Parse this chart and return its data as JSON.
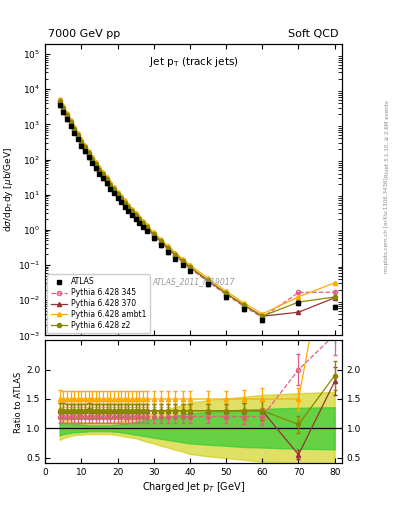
{
  "title_left": "7000 GeV pp",
  "title_right": "Soft QCD",
  "plot_title": "Jet p$_{T}$ (track jets)",
  "ylabel_main": "dσ/dp$_{T}$dy [μb/GeV]",
  "ylabel_ratio": "Ratio to ATLAS",
  "xlabel": "Charged Jet p$_{T}$ [GeV]",
  "watermark": "ATLAS_2011_I919017",
  "right_label1": "Rivet 3.1.10, ≥ 2.6M events",
  "right_label2": "mcplots.cern.ch [arXiv:1306.3436]",
  "atlas_pt": [
    4,
    5,
    6,
    7,
    8,
    9,
    10,
    11,
    12,
    13,
    14,
    15,
    16,
    17,
    18,
    19,
    20,
    21,
    22,
    23,
    24,
    25,
    26,
    27,
    28,
    30,
    32,
    34,
    36,
    38,
    40,
    45,
    50,
    55,
    60,
    70,
    80
  ],
  "atlas_val": [
    3500,
    2200,
    1400,
    900,
    580,
    380,
    250,
    170,
    115,
    80,
    56,
    40,
    29,
    21,
    15,
    11,
    8.2,
    6.1,
    4.6,
    3.5,
    2.65,
    2.0,
    1.55,
    1.2,
    0.93,
    0.57,
    0.36,
    0.23,
    0.15,
    0.1,
    0.067,
    0.028,
    0.012,
    0.0055,
    0.0027,
    0.0083,
    0.0065
  ],
  "atlas_err": [
    300,
    180,
    110,
    70,
    45,
    30,
    20,
    13,
    9,
    6,
    4.5,
    3,
    2.2,
    1.6,
    1.1,
    0.8,
    0.6,
    0.45,
    0.34,
    0.26,
    0.19,
    0.15,
    0.11,
    0.09,
    0.07,
    0.042,
    0.026,
    0.017,
    0.011,
    0.007,
    0.005,
    0.002,
    0.0009,
    0.0005,
    0.0003,
    0.001,
    0.0008
  ],
  "py345_pt": [
    4,
    5,
    6,
    7,
    8,
    9,
    10,
    11,
    12,
    13,
    14,
    15,
    16,
    17,
    18,
    19,
    20,
    21,
    22,
    23,
    24,
    25,
    26,
    27,
    28,
    30,
    32,
    34,
    36,
    38,
    40,
    45,
    50,
    55,
    60,
    70,
    80
  ],
  "py345_val": [
    4200,
    2640,
    1680,
    1080,
    696,
    456,
    300,
    204,
    138,
    96,
    67.2,
    48,
    34.8,
    25.2,
    18,
    13.2,
    9.84,
    7.32,
    5.52,
    4.2,
    3.18,
    2.4,
    1.86,
    1.44,
    1.116,
    0.684,
    0.432,
    0.276,
    0.18,
    0.12,
    0.0804,
    0.0336,
    0.0144,
    0.0066,
    0.00324,
    0.0166,
    0.0169
  ],
  "py345_err": [
    200,
    130,
    80,
    50,
    35,
    22,
    15,
    10,
    7,
    5,
    3.4,
    2.4,
    1.7,
    1.3,
    0.9,
    0.66,
    0.49,
    0.37,
    0.28,
    0.21,
    0.16,
    0.12,
    0.09,
    0.07,
    0.056,
    0.034,
    0.022,
    0.014,
    0.009,
    0.006,
    0.004,
    0.0017,
    0.0007,
    0.00033,
    0.00016,
    0.00083,
    0.00085
  ],
  "py370_pt": [
    4,
    5,
    6,
    7,
    8,
    9,
    10,
    11,
    12,
    13,
    14,
    15,
    16,
    17,
    18,
    19,
    20,
    21,
    22,
    23,
    24,
    25,
    26,
    27,
    28,
    30,
    32,
    34,
    36,
    38,
    40,
    45,
    50,
    55,
    60,
    70,
    80
  ],
  "py370_val": [
    4550,
    2860,
    1820,
    1170,
    754,
    494,
    325,
    221,
    150,
    104,
    72.8,
    52,
    37.7,
    27.3,
    19.5,
    14.3,
    10.66,
    7.93,
    5.98,
    4.55,
    3.445,
    2.6,
    2.015,
    1.56,
    1.209,
    0.741,
    0.468,
    0.299,
    0.195,
    0.13,
    0.0871,
    0.0364,
    0.0156,
    0.00715,
    0.00351,
    0.00455,
    0.0117
  ],
  "py370_err": [
    220,
    140,
    90,
    57,
    37,
    24,
    16,
    11,
    7.5,
    5.2,
    3.6,
    2.6,
    1.9,
    1.4,
    1.0,
    0.72,
    0.53,
    0.4,
    0.3,
    0.23,
    0.17,
    0.13,
    0.1,
    0.078,
    0.06,
    0.037,
    0.023,
    0.015,
    0.01,
    0.0065,
    0.0044,
    0.0018,
    0.00078,
    0.00036,
    0.00018,
    0.00023,
    0.00059
  ],
  "pyambt1_pt": [
    4,
    5,
    6,
    7,
    8,
    9,
    10,
    11,
    12,
    13,
    14,
    15,
    16,
    17,
    18,
    19,
    20,
    21,
    22,
    23,
    24,
    25,
    26,
    27,
    28,
    30,
    32,
    34,
    36,
    38,
    40,
    45,
    50,
    55,
    60,
    70,
    80
  ],
  "pyambt1_val": [
    5250,
    3300,
    2100,
    1350,
    870,
    570,
    375,
    255,
    173,
    120,
    84,
    60,
    43.5,
    31.5,
    22.5,
    16.5,
    12.3,
    9.15,
    6.9,
    5.25,
    3.975,
    3.0,
    2.325,
    1.8,
    1.395,
    0.855,
    0.54,
    0.345,
    0.225,
    0.15,
    0.1005,
    0.042,
    0.018,
    0.00825,
    0.00405,
    0.01245,
    0.0312
  ],
  "pyambt1_err": [
    250,
    160,
    100,
    65,
    43,
    27,
    18,
    13,
    8.7,
    6.0,
    4.2,
    3.0,
    2.2,
    1.6,
    1.1,
    0.83,
    0.62,
    0.46,
    0.35,
    0.26,
    0.2,
    0.15,
    0.12,
    0.09,
    0.07,
    0.043,
    0.027,
    0.017,
    0.011,
    0.0075,
    0.005,
    0.0021,
    0.0009,
    0.00041,
    0.0002,
    0.00062,
    0.0016
  ],
  "pyz2_pt": [
    4,
    5,
    6,
    7,
    8,
    9,
    10,
    11,
    12,
    13,
    14,
    15,
    16,
    17,
    18,
    19,
    20,
    21,
    22,
    23,
    24,
    25,
    26,
    27,
    28,
    30,
    32,
    34,
    36,
    38,
    40,
    45,
    50,
    55,
    60,
    70,
    80
  ],
  "pyz2_val": [
    4550,
    2860,
    1820,
    1170,
    754,
    494,
    325,
    221,
    150,
    104,
    72.8,
    52,
    37.7,
    27.3,
    19.5,
    14.3,
    10.66,
    7.93,
    5.98,
    4.55,
    3.445,
    2.6,
    2.015,
    1.56,
    1.209,
    0.741,
    0.468,
    0.299,
    0.195,
    0.13,
    0.0871,
    0.0364,
    0.0156,
    0.00715,
    0.00351,
    0.00884,
    0.01235
  ],
  "pyz2_err": [
    220,
    140,
    90,
    57,
    37,
    24,
    16,
    11,
    7.5,
    5.2,
    3.6,
    2.6,
    1.9,
    1.4,
    1.0,
    0.72,
    0.53,
    0.4,
    0.3,
    0.23,
    0.17,
    0.13,
    0.1,
    0.078,
    0.06,
    0.037,
    0.023,
    0.015,
    0.01,
    0.0065,
    0.0044,
    0.0018,
    0.00078,
    0.00036,
    0.00018,
    0.00044,
    0.00062
  ],
  "atlas_color": "#000000",
  "py345_color": "#e06080",
  "py370_color": "#993333",
  "pyambt1_color": "#ffaa00",
  "pyz2_color": "#888800",
  "band_inner_color": "#33cc33",
  "band_outer_color": "#cccc00",
  "xlim": [
    0,
    82
  ],
  "ylim_main": [
    0.001,
    200000.0
  ],
  "ylim_ratio": [
    0.4,
    2.5
  ],
  "ratio_yticks": [
    0.5,
    1.0,
    1.5,
    2.0
  ],
  "xmin_band": 4,
  "xmax_band": 82,
  "band_outer_lo": [
    0.8,
    0.83,
    0.85,
    0.87,
    0.88,
    0.89,
    0.89,
    0.9,
    0.9,
    0.9,
    0.9,
    0.9,
    0.9,
    0.9,
    0.9,
    0.89,
    0.88,
    0.87,
    0.86,
    0.85,
    0.84,
    0.83,
    0.81,
    0.79,
    0.77,
    0.74,
    0.7,
    0.67,
    0.63,
    0.6,
    0.56,
    0.52,
    0.49,
    0.46,
    0.43,
    0.4,
    0.38
  ],
  "band_outer_hi": [
    1.2,
    1.17,
    1.15,
    1.13,
    1.12,
    1.11,
    1.11,
    1.1,
    1.1,
    1.1,
    1.1,
    1.1,
    1.1,
    1.1,
    1.1,
    1.11,
    1.12,
    1.13,
    1.14,
    1.15,
    1.16,
    1.17,
    1.19,
    1.21,
    1.23,
    1.26,
    1.3,
    1.33,
    1.37,
    1.4,
    1.44,
    1.48,
    1.51,
    1.54,
    1.57,
    1.6,
    1.62
  ],
  "band_inner_lo": [
    0.88,
    0.9,
    0.91,
    0.92,
    0.93,
    0.93,
    0.94,
    0.94,
    0.95,
    0.95,
    0.95,
    0.95,
    0.95,
    0.95,
    0.95,
    0.94,
    0.94,
    0.93,
    0.92,
    0.91,
    0.9,
    0.89,
    0.88,
    0.87,
    0.86,
    0.84,
    0.82,
    0.8,
    0.78,
    0.76,
    0.74,
    0.72,
    0.7,
    0.68,
    0.67,
    0.65,
    0.64
  ],
  "band_inner_hi": [
    1.12,
    1.1,
    1.09,
    1.08,
    1.07,
    1.07,
    1.06,
    1.06,
    1.05,
    1.05,
    1.05,
    1.05,
    1.05,
    1.05,
    1.05,
    1.06,
    1.06,
    1.07,
    1.08,
    1.09,
    1.1,
    1.11,
    1.12,
    1.13,
    1.14,
    1.16,
    1.18,
    1.2,
    1.22,
    1.24,
    1.26,
    1.28,
    1.3,
    1.32,
    1.33,
    1.35,
    1.36
  ]
}
